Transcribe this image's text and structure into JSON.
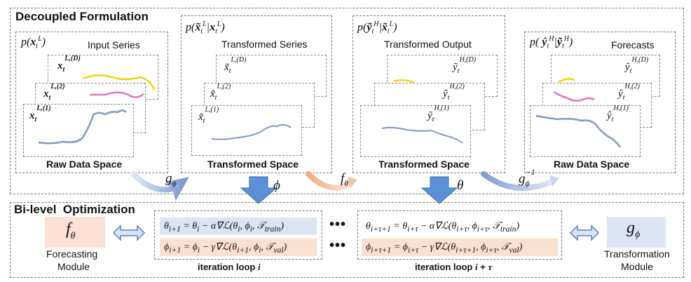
{
  "decoupled": {
    "title": "Decoupled Formulation",
    "panel1": {
      "expr": "p(x_t^L)",
      "label": "Input Series",
      "space": "Raw Data Space",
      "series": [
        "x_t^{L,(D)}",
        "x_t^{L,(2)}",
        "x_t^{L,(1)}"
      ]
    },
    "panel2": {
      "expr": "p(x̃_t^L | x_t^L)",
      "label": "Transformed Series",
      "space": "Transformed Space",
      "series": [
        "x̃_t^{L,(D)}",
        "x̃_t^{L,(2)}",
        "x̃_t^{L,(1)}"
      ]
    },
    "panel3": {
      "expr": "p(ỹ_t^H | x̃_t^L)",
      "label": "Transformed Output",
      "space": "Transformed Space",
      "series": [
        "ỹ_t^{H,(D)}",
        "ỹ_t^{H,(2)}",
        "ỹ_t^{H,(1)}"
      ]
    },
    "panel4": {
      "expr": "p(ŷ_t^H | ỹ_t^H)",
      "label": "Forecasts",
      "space": "Raw Data Space",
      "series": [
        "ŷ_t^{H,(D)}",
        "ŷ_t^{H,(2)}",
        "ŷ_t^{H,(1)}"
      ]
    },
    "arrows": {
      "g_phi": "gϕ",
      "phi": "ϕ",
      "f_theta": "fθ",
      "theta": "θ",
      "g_phi_inv": "gϕ⁻¹"
    }
  },
  "bilevel": {
    "title": "Bi-level  Optimization",
    "forecasting": {
      "symbol": "fθ",
      "label_line1": "Forecasting",
      "label_line2": "Module"
    },
    "transformation": {
      "symbol": "gϕ",
      "label_line1": "Transformation",
      "label_line2": "Module"
    },
    "loop1": {
      "theta_update": "θi+1 = θi − α∇ℒ(θi, ϕi, 𝒯train)",
      "phi_update": "ϕi+1 = ϕi − γ∇ℒ(θi+1, ϕi, 𝒯val)",
      "caption": "iteration loop i"
    },
    "loop2": {
      "theta_update": "θi+τ+1 = θi+τ − α∇ℒ(θi+τ, ϕi+τ, 𝒯train)",
      "phi_update": "ϕi+τ+1 = ϕi+τ − γ∇ℒ(θi+τ+1, ϕi+τ, 𝒯val)",
      "caption": "iteration loop i + τ"
    },
    "dots": "•••"
  },
  "colors": {
    "yellow": "#f2d40a",
    "pink": "#e078b8",
    "blue": "#8197c4",
    "formula_blue": "#dbe4f3",
    "formula_orange": "#fbe0cf",
    "module_blue": "#dde5f4",
    "module_orange": "#fbe0d3"
  }
}
